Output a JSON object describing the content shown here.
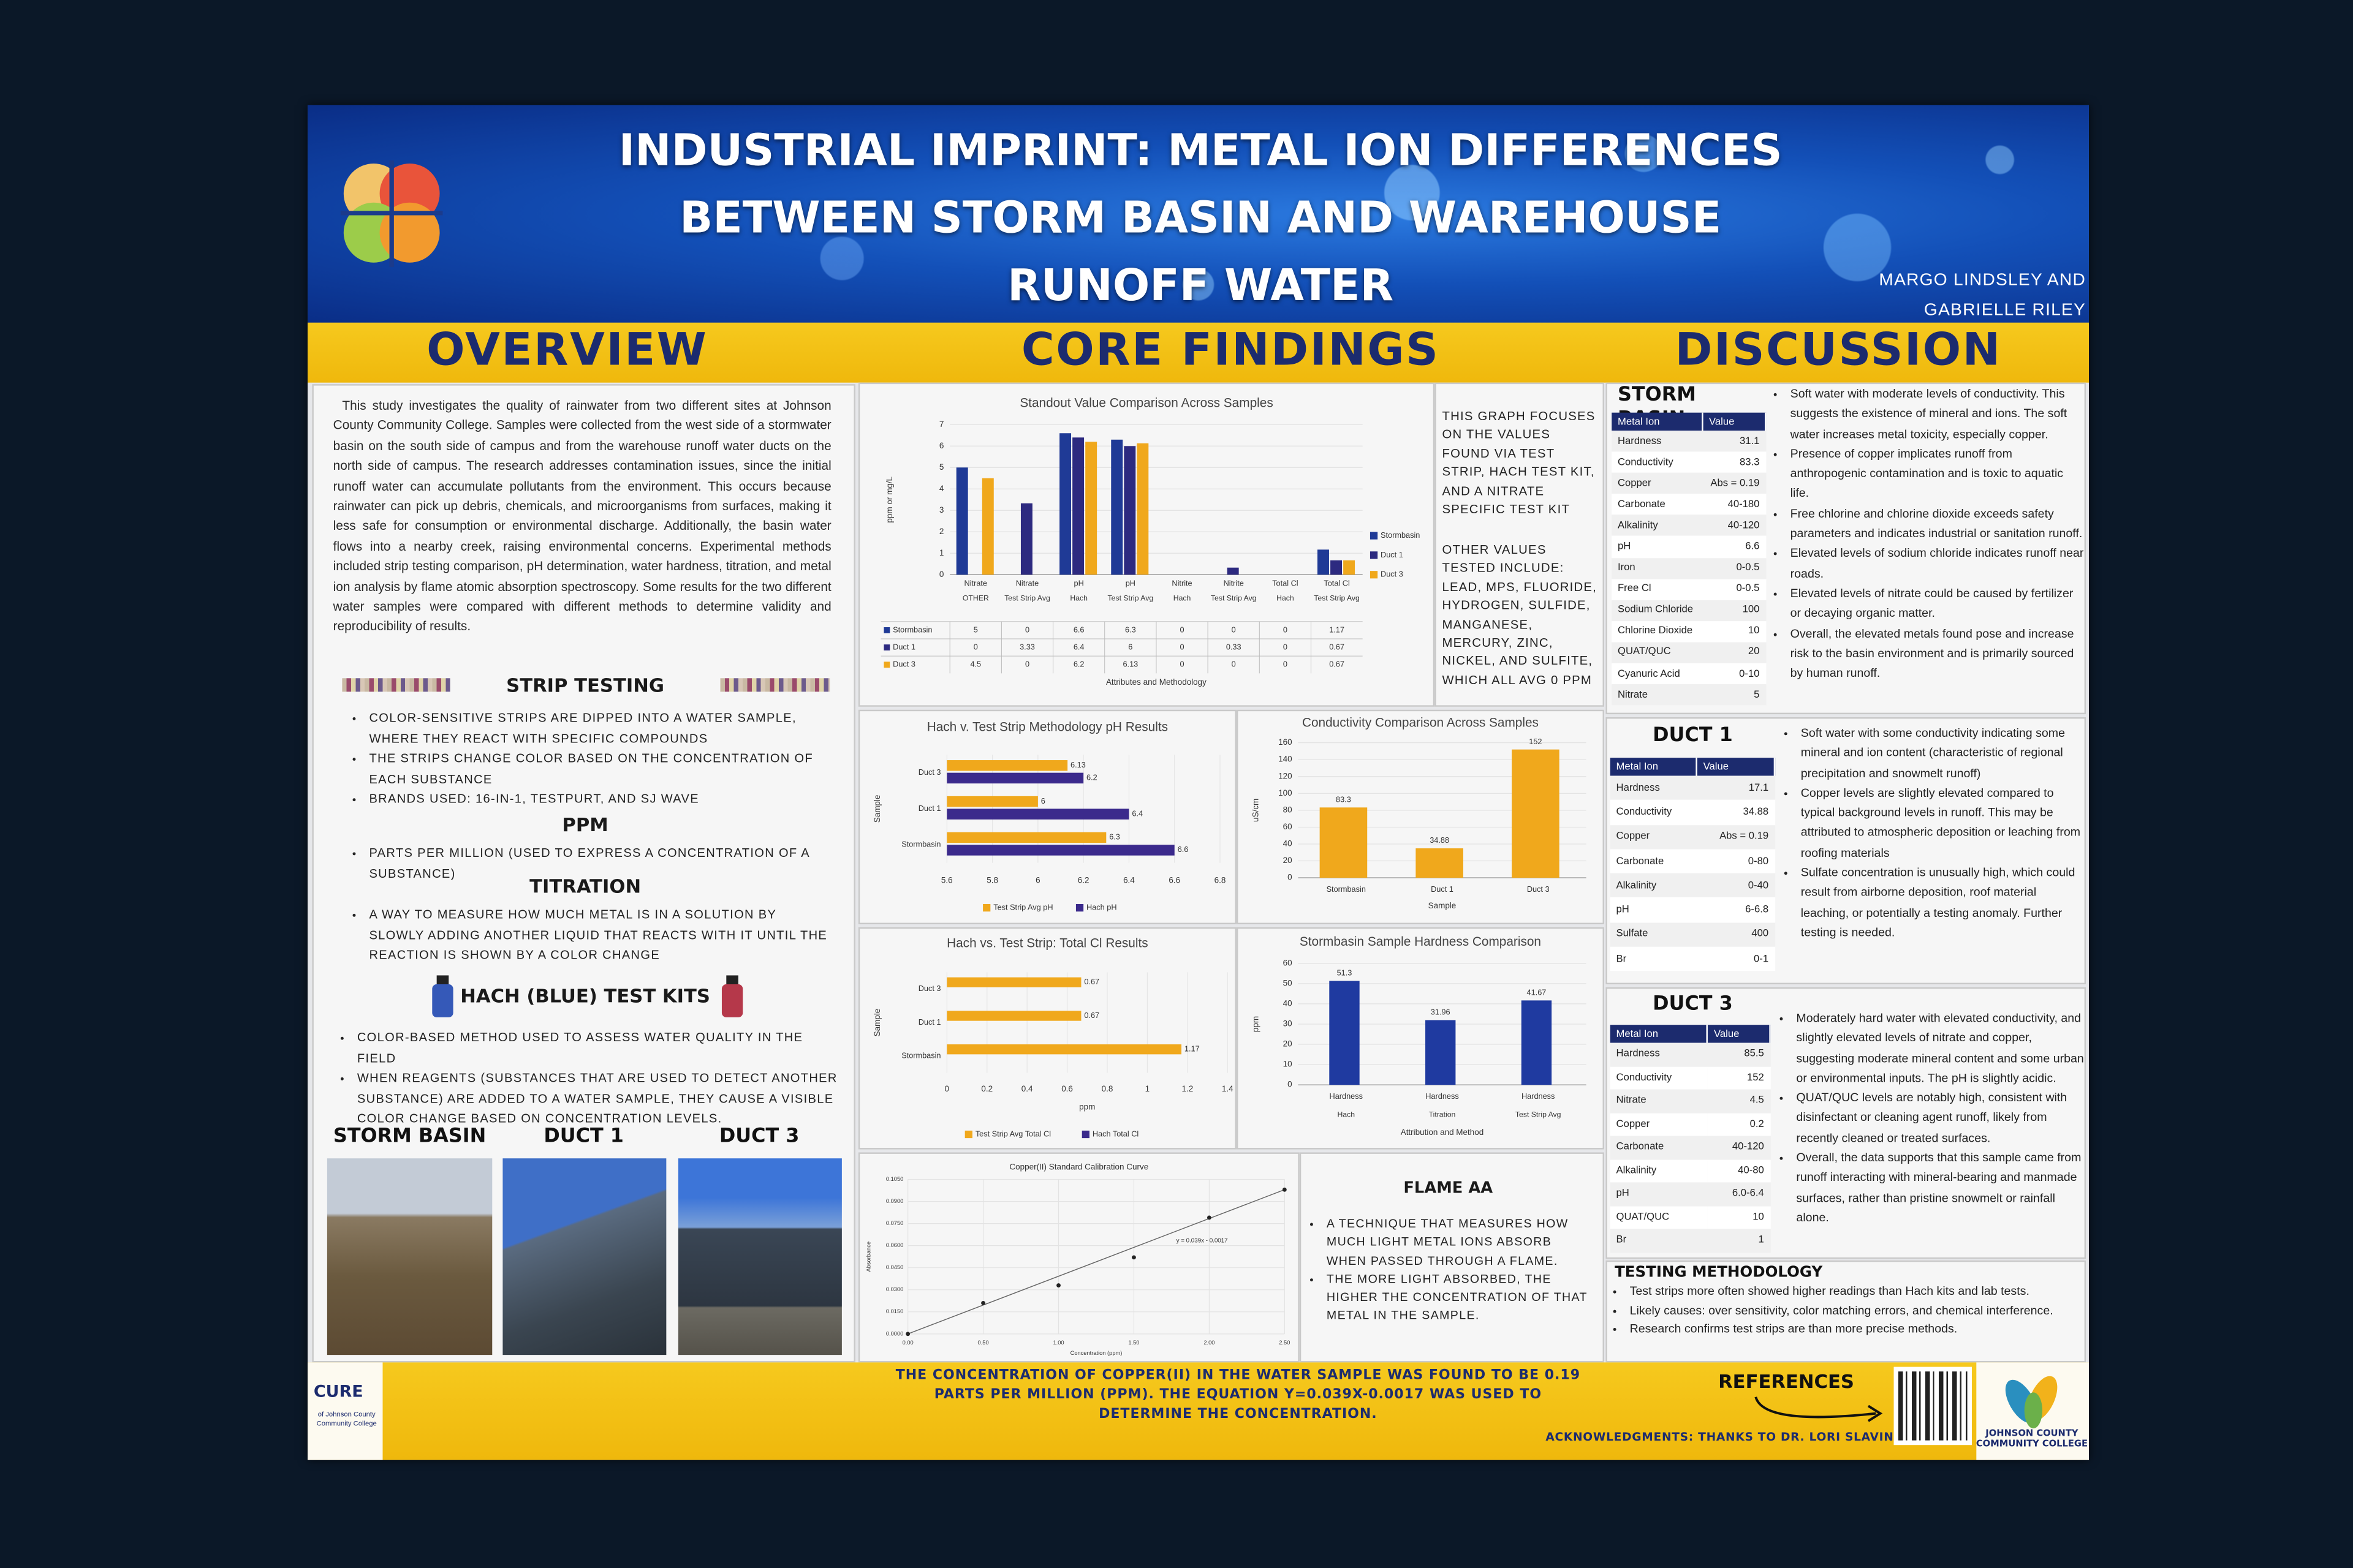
{
  "header": {
    "title": [
      "INDUSTRIAL IMPRINT: METAL ION DIFFERENCES",
      "BETWEEN STORM BASIN AND WAREHOUSE",
      "RUNOFF WATER"
    ],
    "authors": [
      "MARGO LINDSLEY AND",
      "GABRIELLE RILEY"
    ]
  },
  "sections": {
    "overview": "OVERVIEW",
    "core_findings": "CORE FINDINGS",
    "discussion": "DISCUSSION"
  },
  "overview": {
    "intro": "This study investigates the quality of rainwater from two different sites at Johnson County Community College.  Samples were collected from the west side of a stormwater basin on the south side of campus and from the warehouse runoff water ducts on the north side of campus. The research addresses contamination issues, since the initial runoff water can accumulate pollutants from the environment. This occurs because rainwater can pick up debris, chemicals, and microorganisms from surfaces, making it less safe for consumption or environmental discharge. Additionally, the basin water flows into a nearby creek, raising environmental concerns. Experimental methods included strip testing comparison, pH determination, water hardness, titration, and metal ion analysis by flame atomic absorption spectroscopy. Some results for the two different water samples were compared with different methods to determine validity and reproducibility of results.",
    "strip_testing": {
      "heading": "STRIP TESTING",
      "bullets": [
        "COLOR-SENSITIVE STRIPS ARE DIPPED INTO A WATER SAMPLE, WHERE THEY REACT WITH SPECIFIC COMPOUNDS",
        "THE STRIPS CHANGE COLOR BASED ON THE CONCENTRATION OF EACH SUBSTANCE",
        "BRANDS USED: 16-IN-1, TESTPURT, AND SJ WAVE"
      ]
    },
    "ppm": {
      "heading": "PPM",
      "bullets": [
        "PARTS PER MILLION (USED TO EXPRESS A CONCENTRATION OF A SUBSTANCE)"
      ]
    },
    "titration": {
      "heading": "TITRATION",
      "bullets": [
        "A WAY TO MEASURE HOW MUCH METAL IS IN A SOLUTION BY SLOWLY ADDING ANOTHER LIQUID THAT REACTS WITH IT UNTIL THE REACTION IS SHOWN BY A COLOR CHANGE"
      ]
    },
    "hach": {
      "heading": "HACH (BLUE) TEST KITS",
      "bullets": [
        "COLOR-BASED METHOD USED TO ASSESS WATER QUALITY IN THE FIELD",
        "WHEN REAGENTS (SUBSTANCES THAT ARE USED TO DETECT ANOTHER SUBSTANCE) ARE ADDED TO A WATER SAMPLE, THEY CAUSE A VISIBLE COLOR CHANGE BASED ON CONCENTRATION LEVELS."
      ]
    },
    "photos": [
      "STORM BASIN",
      "DUCT 1",
      "DUCT 3"
    ]
  },
  "core_findings": {
    "standout": {
      "type": "bar",
      "title": "Standout Value Comparison Across Samples",
      "categories": [
        "Nitrate",
        "Nitrate",
        "pH",
        "pH",
        "Nitrite",
        "Nitrite",
        "Total Cl",
        "Total Cl"
      ],
      "methods": [
        "OTHER",
        "Test Strip Avg",
        "Hach",
        "Test Strip Avg",
        "Hach",
        "Test Strip Avg",
        "Hach",
        "Test Strip Avg"
      ],
      "series": [
        {
          "name": "Stormbasin",
          "color": "#1f3a96",
          "values": [
            5,
            0,
            6.6,
            6.3,
            0,
            0,
            0,
            1.17
          ]
        },
        {
          "name": "Duct 1",
          "color": "#2d2a80",
          "values": [
            0,
            3.33,
            6.4,
            6,
            0,
            0.33,
            0,
            0.67
          ]
        },
        {
          "name": "Duct 3",
          "color": "#f0a81c",
          "values": [
            4.5,
            0,
            6.2,
            6.13,
            0,
            0,
            0,
            0.67
          ]
        }
      ],
      "ylim": [
        0,
        7
      ],
      "yticks": [
        0,
        1,
        2,
        3,
        4,
        5,
        6,
        7
      ],
      "ylabel": "ppm or mg/L",
      "xlabel": "Attributes and Methodology"
    },
    "standout_notes": [
      "THIS GRAPH FOCUSES ON THE VALUES FOUND VIA TEST STRIP, HACH TEST KIT, AND A NITRATE SPECIFIC TEST KIT",
      "OTHER VALUES TESTED INCLUDE: LEAD, MPS, FLUORIDE, HYDROGEN, SULFIDE, MANGANESE, MERCURY, ZINC, NICKEL, AND SULFITE, WHICH ALL AVG 0 PPM"
    ],
    "ph": {
      "type": "hbar",
      "title": "Hach v. Test Strip Methodology pH Results",
      "categories": [
        "Duct 3",
        "Duct 1",
        "Stormbasin"
      ],
      "series": [
        {
          "name": "Test Strip Avg pH",
          "color": "#f0a81c",
          "values": [
            6.13,
            6,
            6.3
          ]
        },
        {
          "name": "Hach pH",
          "color": "#3b2a8c",
          "values": [
            6.2,
            6.4,
            6.6
          ]
        }
      ],
      "xlim": [
        5.6,
        6.8
      ],
      "xticks": [
        5.6,
        5.8,
        6,
        6.2,
        6.4,
        6.6,
        6.8
      ],
      "ylabel": "Sample"
    },
    "conductivity": {
      "type": "bar",
      "title": "Conductivity Comparison Across Samples",
      "categories": [
        "Stormbasin",
        "Duct 1",
        "Duct 3"
      ],
      "values": [
        83.3,
        34.88,
        152
      ],
      "color": "#f0a81c",
      "ylim": [
        0,
        160
      ],
      "yticks": [
        0,
        20,
        40,
        60,
        80,
        100,
        120,
        140,
        160
      ],
      "ylabel": "uS/cm",
      "xlabel": "Sample"
    },
    "total_cl": {
      "type": "hbar",
      "title": "Hach vs. Test Strip: Total Cl Results",
      "categories": [
        "Duct 3",
        "Duct 1",
        "Stormbasin"
      ],
      "series": [
        {
          "name": "Test Strip Avg Total Cl",
          "color": "#f0a81c",
          "values": [
            0.67,
            0.67,
            1.17
          ]
        },
        {
          "name": "Hach Total Cl",
          "color": "#3b2a8c",
          "values": [
            0,
            0,
            0
          ]
        }
      ],
      "xlim": [
        0,
        1.4
      ],
      "xticks": [
        0,
        0.2,
        0.4,
        0.6,
        0.8,
        1,
        1.2,
        1.4
      ],
      "xlabel": "ppm",
      "ylabel": "Sample"
    },
    "hardness": {
      "type": "bar",
      "title": "Stormbasin Sample Hardness Comparison",
      "categories": [
        "Hardness",
        "Hardness",
        "Hardness"
      ],
      "methods": [
        "Hach",
        "Titration",
        "Test Strip Avg"
      ],
      "values": [
        51.3,
        31.96,
        41.67
      ],
      "color": "#1f3aa0",
      "ylim": [
        0,
        60
      ],
      "yticks": [
        0,
        10,
        20,
        30,
        40,
        50,
        60
      ],
      "ylabel": "ppm",
      "xlabel": "Attribution and Method"
    },
    "calibration": {
      "type": "scatter",
      "title": "Copper(II) Standard Calibration Curve",
      "x": [
        0,
        0.5,
        1,
        1.5,
        2,
        2.5
      ],
      "values": [
        0,
        0.021,
        0.033,
        0.052,
        0.079,
        0.098
      ],
      "xlim": [
        0,
        2.5
      ],
      "xticks": [
        {
          "value": 0,
          "label": "0.00"
        },
        {
          "value": 0.5,
          "label": "0.50"
        },
        {
          "value": 1,
          "label": "1.00"
        },
        {
          "value": 1.5,
          "label": "1.50"
        },
        {
          "value": 2,
          "label": "2.00"
        },
        {
          "value": 2.5,
          "label": "2.50"
        }
      ],
      "ylim": [
        0,
        0.105
      ],
      "yticks": [
        {
          "value": 0,
          "label": "0.0000"
        },
        {
          "value": 0.015,
          "label": "0.0150"
        },
        {
          "value": 0.03,
          "label": "0.0300"
        },
        {
          "value": 0.045,
          "label": "0.0450"
        },
        {
          "value": 0.06,
          "label": "0.0600"
        },
        {
          "value": 0.075,
          "label": "0.0750"
        },
        {
          "value": 0.09,
          "label": "0.0900"
        },
        {
          "value": 0.105,
          "label": "0.1050"
        }
      ],
      "xlabel": "Concentration (ppm)",
      "ylabel": "Absorbance",
      "equation": "y = 0.039x - 0.0017"
    },
    "flame_aa": {
      "heading": "FLAME AA",
      "bullets": [
        "A TECHNIQUE THAT MEASURES HOW MUCH LIGHT METAL IONS ABSORB WHEN PASSED THROUGH A FLAME.",
        "THE MORE LIGHT ABSORBED, THE HIGHER THE CONCENTRATION OF THAT METAL IN THE SAMPLE."
      ]
    }
  },
  "discussion": {
    "storm_basin": {
      "heading": "STORM BASIN",
      "columns": [
        "Metal Ion",
        "Value"
      ],
      "rows": [
        [
          "Hardness",
          "31.1"
        ],
        [
          "Conductivity",
          "83.3"
        ],
        [
          "Copper",
          "Abs = 0.19"
        ],
        [
          "Carbonate",
          "40-180"
        ],
        [
          "Alkalinity",
          "40-120"
        ],
        [
          "pH",
          "6.6"
        ],
        [
          "Iron",
          "0-0.5"
        ],
        [
          "Free Cl",
          "0-0.5"
        ],
        [
          "Sodium Chloride",
          "100"
        ],
        [
          "Chlorine Dioxide",
          "10"
        ],
        [
          "QUAT/QUC",
          "20"
        ],
        [
          "Cyanuric Acid",
          "0-10"
        ],
        [
          "Nitrate",
          "5"
        ]
      ],
      "bullets": [
        "Soft water with moderate levels of conductivity. This suggests the existence of mineral and ions. The soft water increases metal toxicity, especially copper.",
        "Presence of copper implicates runoff from anthropogenic contamination and is toxic to aquatic life.",
        "Free chlorine and chlorine dioxide exceeds safety parameters and indicates industrial or sanitation runoff.",
        "Elevated levels of sodium chloride indicates runoff near roads.",
        "Elevated levels of nitrate could be caused by fertilizer or decaying organic matter.",
        "Overall, the elevated metals found pose and increase risk to the basin environment and is primarily sourced by human runoff."
      ]
    },
    "duct_1": {
      "heading": "DUCT 1",
      "columns": [
        "Metal Ion",
        "Value"
      ],
      "rows": [
        [
          "Hardness",
          "17.1"
        ],
        [
          "Conductivity",
          "34.88"
        ],
        [
          "Copper",
          "Abs = 0.19"
        ],
        [
          "Carbonate",
          "0-80"
        ],
        [
          "Alkalinity",
          "0-40"
        ],
        [
          "pH",
          "6-6.8"
        ],
        [
          "Sulfate",
          "400"
        ],
        [
          "Br",
          "0-1"
        ]
      ],
      "bullets": [
        "Soft water with some conductivity indicating some mineral and ion content (characteristic of regional precipitation and snowmelt runoff)",
        "Copper levels are slightly elevated compared to typical background levels in runoff. This may be attributed to atmospheric deposition or leaching from roofing materials",
        "Sulfate concentration is unusually high, which could result from airborne deposition, roof material leaching, or potentially a testing anomaly. Further testing is needed."
      ]
    },
    "duct_3": {
      "heading": "DUCT 3",
      "columns": [
        "Metal Ion",
        "Value"
      ],
      "rows": [
        [
          "Hardness",
          "85.5"
        ],
        [
          "Conductivity",
          "152"
        ],
        [
          "Nitrate",
          "4.5"
        ],
        [
          "Copper",
          "0.2"
        ],
        [
          "Carbonate",
          "40-120"
        ],
        [
          "Alkalinity",
          "40-80"
        ],
        [
          "pH",
          "6.0-6.4"
        ],
        [
          "QUAT/QUC",
          "10"
        ],
        [
          "Br",
          "1"
        ]
      ],
      "bullets": [
        "Moderately hard water with elevated conductivity, and slightly elevated levels of nitrate and copper, suggesting moderate mineral content and some urban or environmental inputs. The pH is slightly acidic.",
        "QUAT/QUC levels are notably high, consistent with disinfectant or cleaning agent runoff, likely from recently cleaned or treated surfaces.",
        "Overall, the data supports that this sample came from runoff interacting with mineral-bearing and manmade surfaces, rather than pristine snowmelt or rainfall alone."
      ]
    },
    "testing_methodology": {
      "heading": "TESTING METHODOLOGY",
      "bullets": [
        "Test strips more often showed higher readings than Hach kits and lab tests.",
        "Likely causes: over sensitivity, color matching errors, and chemical interference.",
        "Research confirms test strips are than more precise methods."
      ]
    }
  },
  "footer": {
    "conclusion": "THE CONCENTRATION OF COPPER(II) IN THE WATER SAMPLE WAS FOUND TO BE 0.19 PARTS PER MILLION (PPM). THE EQUATION Y=0.039X-0.0017 WAS USED TO DETERMINE THE CONCENTRATION.",
    "references": "REFERENCES",
    "acknowledgments": "ACKNOWLEDGMENTS: THANKS TO DR. LORI SLAVIN",
    "cure_logo": "CURE",
    "cure_sub": "of Johnson County Community College",
    "college_logo": "JOHNSON COUNTY COMMUNITY COLLEGE"
  }
}
